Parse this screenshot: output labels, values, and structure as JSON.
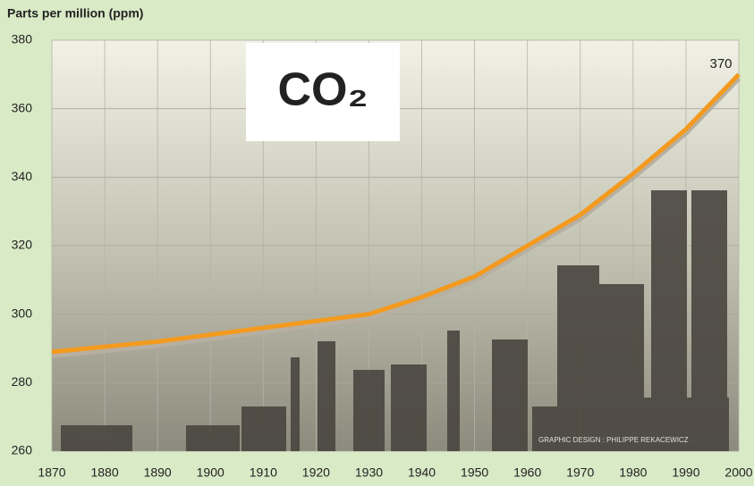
{
  "chart_data": {
    "type": "line",
    "title": "CO₂",
    "y_label": "Parts per million (ppm)",
    "annotation": "370",
    "credit": "GRAPHIC DESIGN : PHILIPPE REKACEWICZ",
    "x": [
      1870,
      1880,
      1890,
      1900,
      1910,
      1920,
      1930,
      1940,
      1950,
      1960,
      1970,
      1980,
      1990,
      2000
    ],
    "series": [
      {
        "color": "#f39a1f",
        "values": [
          289,
          290.5,
          292,
          294,
          296,
          298,
          300,
          305,
          311,
          320,
          329,
          341,
          354,
          370
        ]
      }
    ],
    "xlim": [
      1870,
      2000
    ],
    "xticks": [
      1870,
      1880,
      1890,
      1900,
      1910,
      1920,
      1930,
      1940,
      1950,
      1960,
      1970,
      1980,
      1990,
      2000
    ],
    "ylim": [
      260,
      380
    ],
    "yticks": [
      260,
      280,
      300,
      320,
      340,
      360,
      380
    ],
    "grid": true
  }
}
